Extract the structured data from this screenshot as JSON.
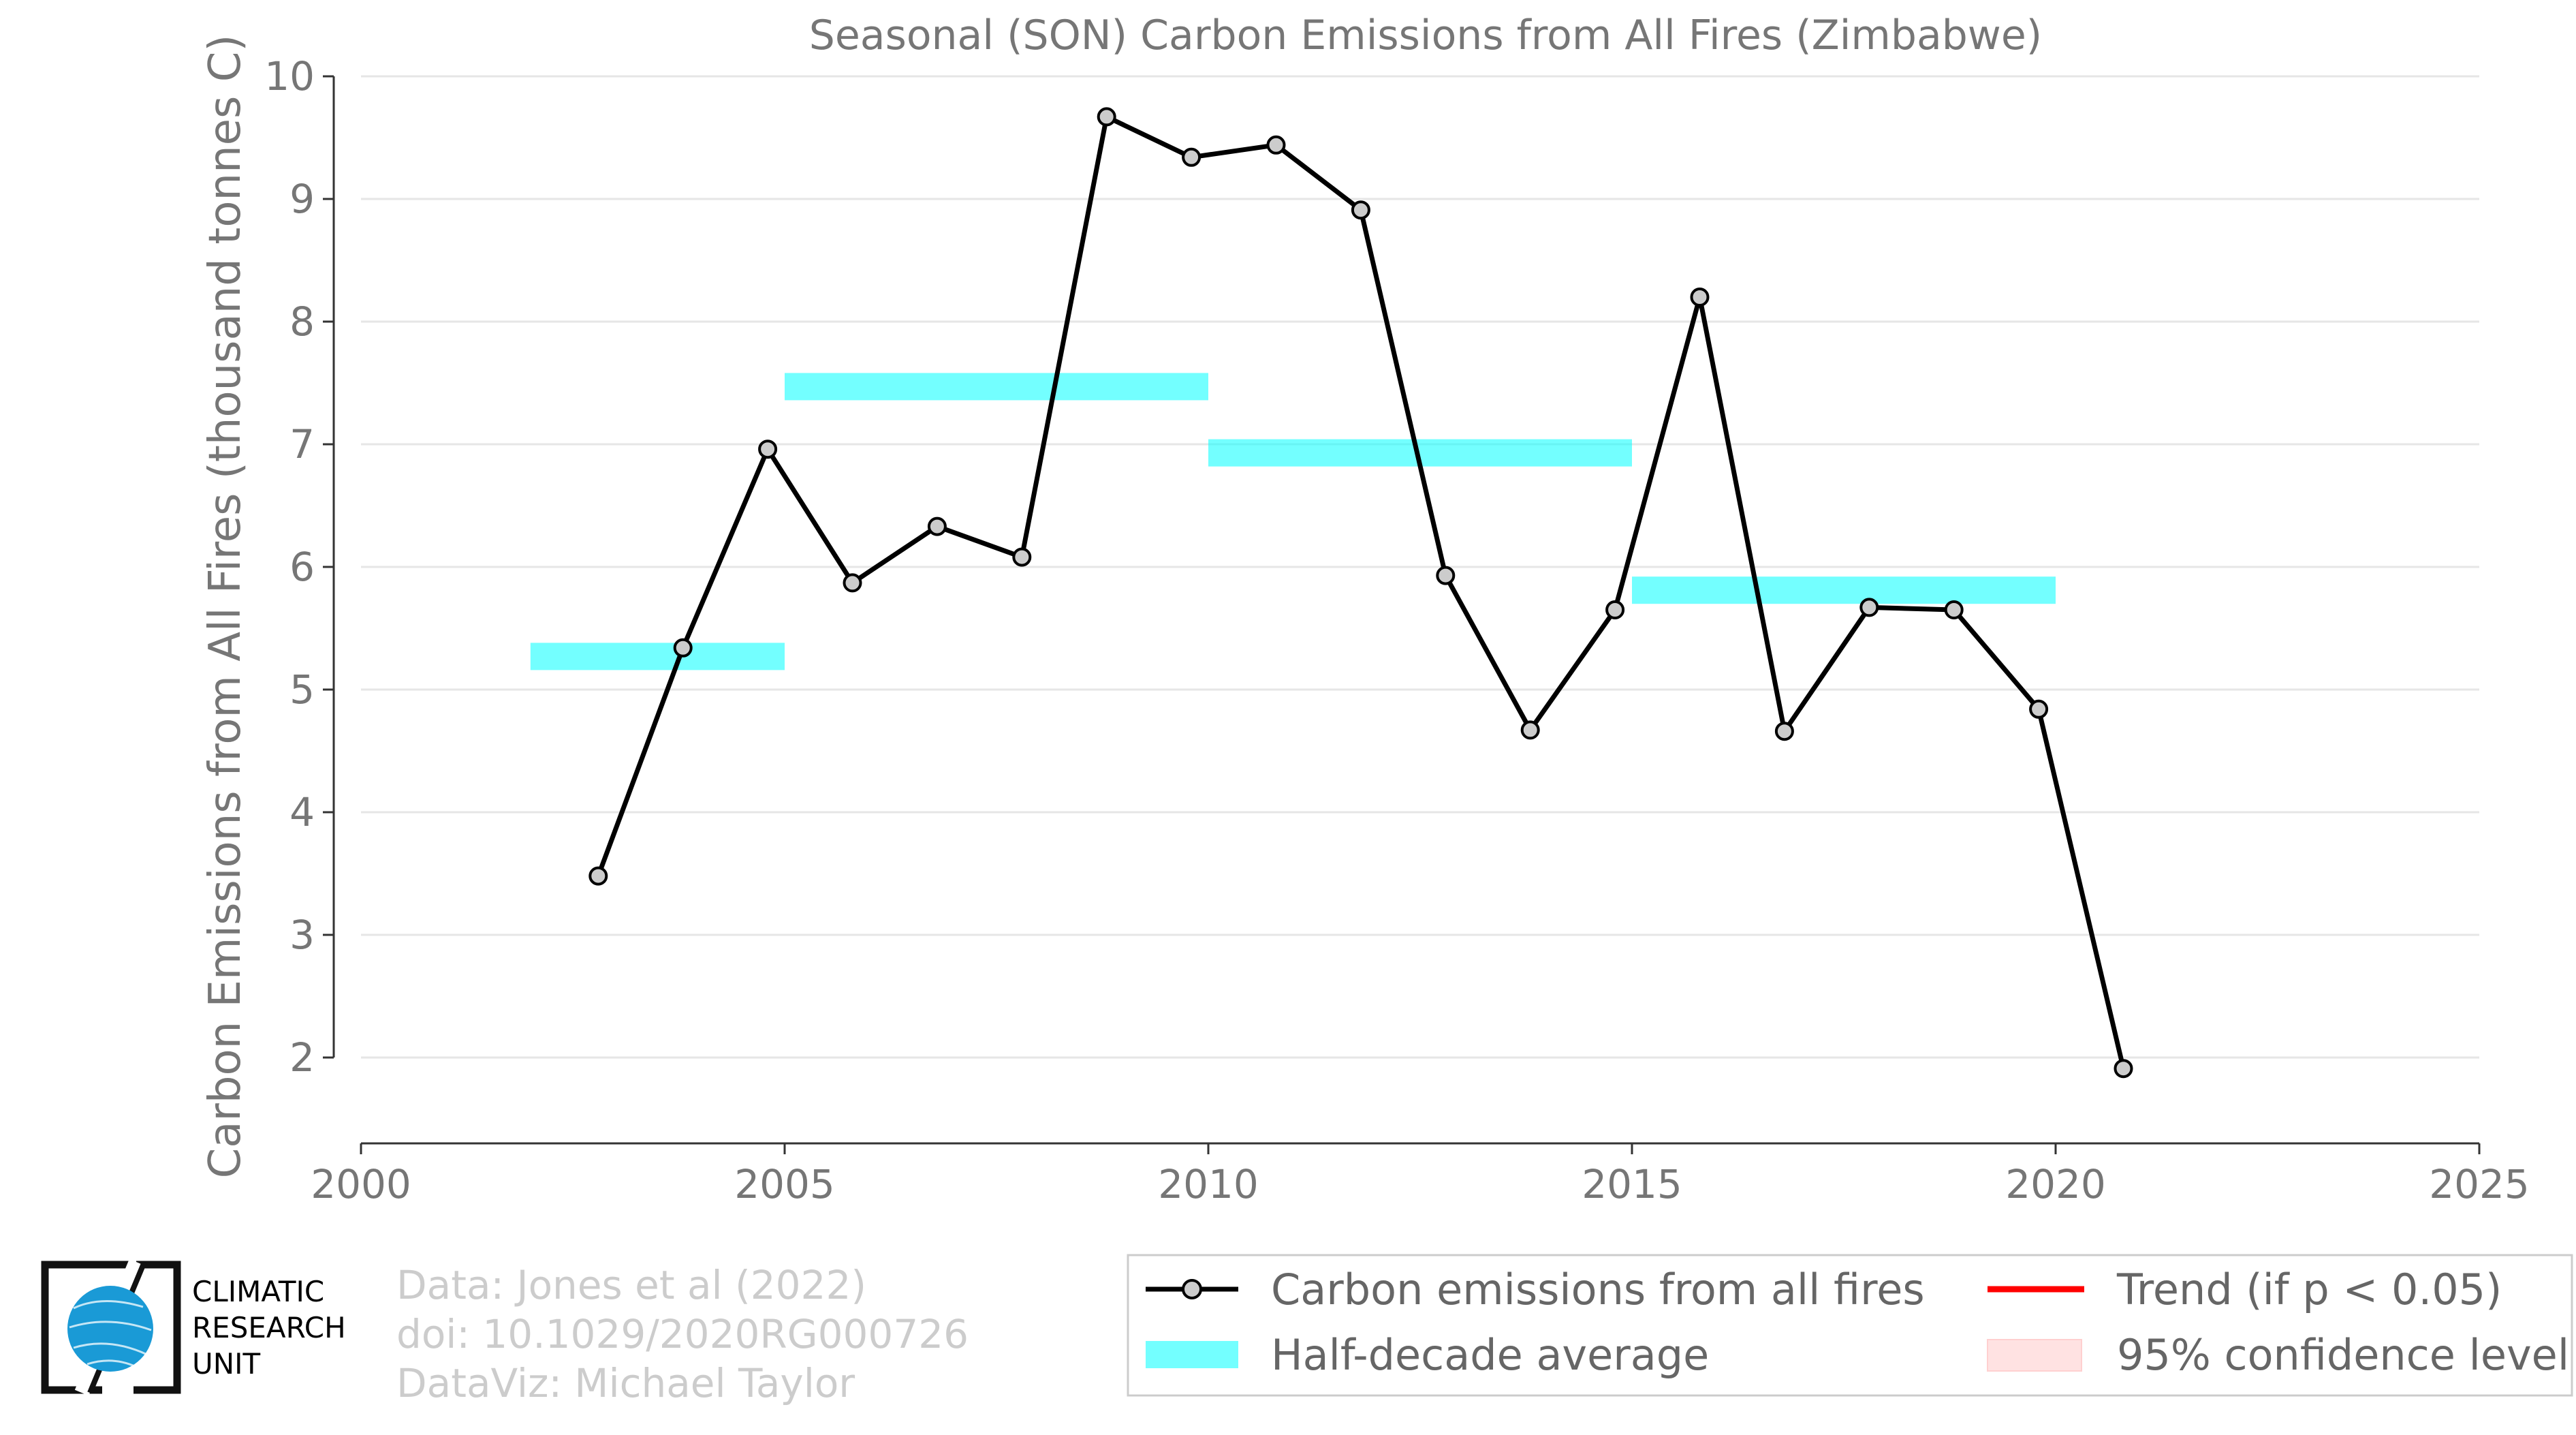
{
  "chart_data": {
    "type": "line",
    "title": "Seasonal (SON) Carbon Emissions from All Fires (Zimbabwe)",
    "xlabel": "",
    "ylabel": "Carbon Emissions from All Fires (thousand tonnes C)",
    "xlim": [
      2000,
      2025
    ],
    "ylim": [
      1.3,
      10
    ],
    "xticks": [
      "2000",
      "2005",
      "2010",
      "2015",
      "2020",
      "2025"
    ],
    "yticks": [
      "2",
      "3",
      "4",
      "5",
      "6",
      "7",
      "8",
      "9",
      "10"
    ],
    "grid": "horizontal",
    "series": [
      {
        "name": "Carbon emissions from all fires",
        "color": "#000000",
        "marker_fill": "#cccccc",
        "x": [
          2002.8,
          2003.8,
          2004.8,
          2005.8,
          2006.8,
          2007.8,
          2008.8,
          2009.8,
          2010.8,
          2011.8,
          2012.8,
          2013.8,
          2014.8,
          2015.8,
          2016.8,
          2017.8,
          2018.8,
          2019.8,
          2020.8
        ],
        "y": [
          3.48,
          5.34,
          6.96,
          5.87,
          6.33,
          6.08,
          9.67,
          9.34,
          9.44,
          8.91,
          5.93,
          4.67,
          5.65,
          8.2,
          4.66,
          5.67,
          5.65,
          4.84,
          1.91
        ]
      }
    ],
    "half_decade_average": {
      "name": "Half-decade average",
      "color": "#00ffff",
      "segments": [
        {
          "start": 2002,
          "end": 2005,
          "value": 5.27
        },
        {
          "start": 2005,
          "end": 2010,
          "value": 7.47
        },
        {
          "start": 2010,
          "end": 2015,
          "value": 6.93
        },
        {
          "start": 2015,
          "end": 2020,
          "value": 5.81
        }
      ]
    },
    "legend": {
      "placement": "bottom-right",
      "entries": [
        {
          "label": "Carbon emissions from all fires",
          "kind": "line-marker",
          "color": "#000000"
        },
        {
          "label": "Trend (if p < 0.05)",
          "kind": "line",
          "color": "#ff0000"
        },
        {
          "label": "Half-decade average",
          "kind": "band",
          "color": "#00ffff"
        },
        {
          "label": "95% confidence level",
          "kind": "patch",
          "color": "#ffcccc"
        }
      ]
    }
  },
  "credits": {
    "line1": "Data: Jones et al (2022)",
    "line2": "doi: 10.1029/2020RG000726",
    "line3": "DataViz: Michael Taylor"
  },
  "logo": {
    "line1": "CLIMATIC",
    "line2": "RESEARCH",
    "line3": "UNIT",
    "accent": "#1a9ad6"
  }
}
